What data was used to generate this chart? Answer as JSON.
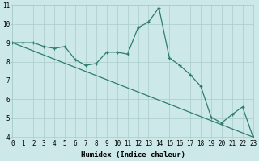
{
  "xlabel": "Humidex (Indice chaleur)",
  "bg_color": "#cce8e8",
  "grid_color": "#aacccc",
  "line_color": "#2e7d6e",
  "x_data": [
    0,
    1,
    2,
    3,
    4,
    5,
    6,
    7,
    8,
    9,
    10,
    11,
    12,
    13,
    14,
    15,
    16,
    17,
    18,
    19,
    20,
    21,
    22,
    23
  ],
  "y_data": [
    9.0,
    9.0,
    9.0,
    8.8,
    8.7,
    8.8,
    8.1,
    7.8,
    7.9,
    8.5,
    8.5,
    8.4,
    9.8,
    10.1,
    10.85,
    8.2,
    7.8,
    7.3,
    6.7,
    5.05,
    4.75,
    5.2,
    5.6,
    4.0
  ],
  "trend_start": 9.0,
  "trend_end": 4.0,
  "xlim": [
    0,
    23
  ],
  "ylim": [
    4,
    11
  ],
  "yticks": [
    4,
    5,
    6,
    7,
    8,
    9,
    10,
    11
  ],
  "xticks": [
    0,
    1,
    2,
    3,
    4,
    5,
    6,
    7,
    8,
    9,
    10,
    11,
    12,
    13,
    14,
    15,
    16,
    17,
    18,
    19,
    20,
    21,
    22,
    23
  ],
  "xlabel_fontsize": 6.5,
  "tick_fontsize": 5.5
}
